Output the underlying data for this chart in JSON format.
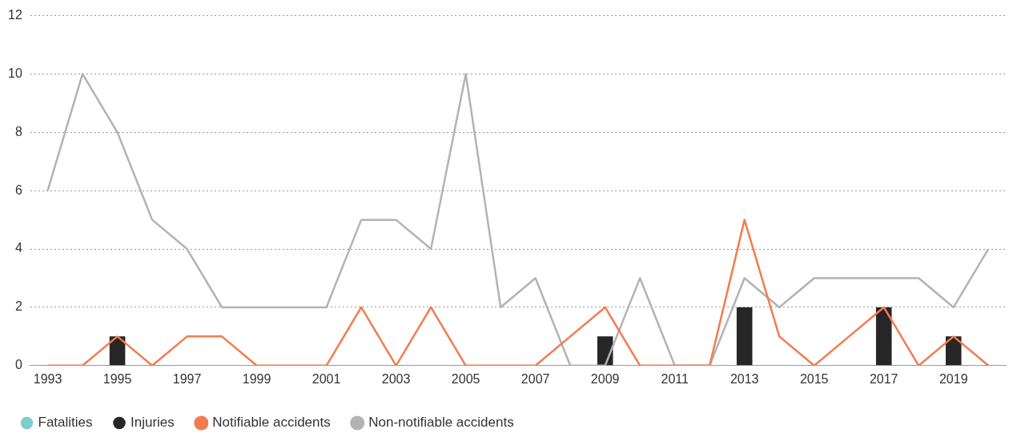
{
  "chart_data": {
    "type": "bar",
    "categories": [
      "1993",
      null,
      "1995",
      null,
      "1997",
      null,
      "1999",
      null,
      "2001",
      null,
      "2003",
      null,
      "2005",
      null,
      "2007",
      null,
      "2009",
      null,
      "2011",
      null,
      "2013",
      null,
      "2015",
      null,
      "2017",
      null,
      "2019",
      null
    ],
    "series": [
      {
        "name": "Fatalities",
        "color": "#7ecdc8",
        "values": [
          0,
          0,
          0,
          0,
          0,
          0,
          0,
          0,
          0,
          0,
          0,
          0,
          0,
          0,
          0,
          0,
          0,
          0,
          0,
          0,
          0,
          0,
          0,
          0,
          0,
          0,
          0,
          0
        ]
      },
      {
        "name": "Injuries",
        "color": "#262626",
        "values": [
          0,
          0,
          1,
          0,
          0,
          0,
          0,
          0,
          0,
          0,
          0,
          0,
          0,
          0,
          0,
          0,
          1,
          0,
          0,
          0,
          2,
          0,
          0,
          0,
          2,
          0,
          1,
          0
        ]
      },
      {
        "name": "Notifiable accidents",
        "type": "line",
        "color": "#f47b4f",
        "values": [
          0,
          0,
          1,
          0,
          1,
          1,
          0,
          0,
          0,
          2,
          0,
          2,
          0,
          0,
          0,
          1,
          2,
          0,
          0,
          0,
          5,
          1,
          0,
          1,
          2,
          0,
          1,
          0
        ]
      },
      {
        "name": "Non-notifiable accidents",
        "type": "line",
        "color": "#b3b3b3",
        "values": [
          6,
          10,
          8,
          5,
          4,
          2,
          2,
          2,
          2,
          5,
          5,
          4,
          10,
          2,
          3,
          0,
          0,
          3,
          0,
          0,
          3,
          2,
          3,
          3,
          3,
          3,
          2,
          4
        ]
      }
    ],
    "ylim": [
      0,
      12
    ],
    "yticks": [
      0,
      2,
      4,
      6,
      8,
      10,
      12
    ],
    "grid": "y",
    "legend": "bottom left",
    "marker": "none",
    "line_style": "solid"
  }
}
